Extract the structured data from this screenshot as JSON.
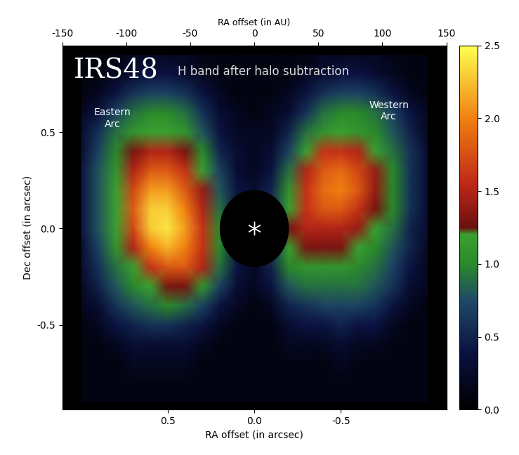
{
  "chart_data": {
    "type": "heatmap",
    "title": "H band after halo subtraction",
    "annotations": [
      "IRS48",
      "Eastern\nArc",
      "Western\nArc"
    ],
    "xlabel": "RA offset (in arcsec)",
    "ylabel": "Dec offset (in arcsec)",
    "x2label": "RA offset (in AU)",
    "x": [
      1.0,
      0.9,
      0.8,
      0.7,
      0.6,
      0.5,
      0.4,
      0.3,
      0.2,
      0.1,
      0.0,
      -0.1,
      -0.2,
      -0.3,
      -0.4,
      -0.5,
      -0.6,
      -0.7,
      -0.8,
      -0.9,
      -1.0
    ],
    "y": [
      0.9,
      0.8,
      0.7,
      0.6,
      0.5,
      0.4,
      0.3,
      0.2,
      0.1,
      0.0,
      -0.1,
      -0.2,
      -0.3,
      -0.4,
      -0.5,
      -0.6,
      -0.7,
      -0.8,
      -0.9
    ],
    "cells": [
      [
        0.1,
        0.1,
        0.1,
        0.2,
        0.2,
        0.2,
        0.2,
        0.1,
        0.1,
        0.1,
        0.1,
        0.1,
        0.1,
        0.1,
        0.2,
        0.2,
        0.2,
        0.2,
        0.1,
        0.1,
        0.1
      ],
      [
        0.1,
        0.1,
        0.2,
        0.3,
        0.4,
        0.4,
        0.3,
        0.2,
        0.1,
        0.1,
        0.1,
        0.1,
        0.1,
        0.2,
        0.3,
        0.4,
        0.4,
        0.3,
        0.2,
        0.1,
        0.1
      ],
      [
        0.1,
        0.2,
        0.4,
        0.6,
        0.7,
        0.7,
        0.6,
        0.4,
        0.2,
        0.1,
        0.1,
        0.1,
        0.2,
        0.4,
        0.6,
        0.7,
        0.7,
        0.6,
        0.4,
        0.2,
        0.1
      ],
      [
        0.2,
        0.4,
        0.7,
        0.9,
        1.0,
        1.0,
        0.9,
        0.6,
        0.3,
        0.2,
        0.1,
        0.2,
        0.3,
        0.6,
        0.9,
        1.0,
        1.0,
        0.9,
        0.7,
        0.4,
        0.2
      ],
      [
        0.3,
        0.6,
        0.9,
        1.1,
        1.2,
        1.2,
        1.1,
        0.8,
        0.4,
        0.2,
        0.2,
        0.2,
        0.5,
        0.9,
        1.1,
        1.2,
        1.1,
        1.0,
        0.8,
        0.5,
        0.2
      ],
      [
        0.3,
        0.7,
        1.0,
        1.3,
        1.5,
        1.5,
        1.3,
        1.0,
        0.5,
        0.3,
        0.2,
        0.3,
        0.7,
        1.2,
        1.6,
        1.6,
        1.5,
        1.2,
        0.9,
        0.6,
        0.3
      ],
      [
        0.4,
        0.8,
        1.1,
        1.5,
        1.8,
        1.8,
        1.6,
        1.2,
        0.7,
        0.3,
        0.2,
        0.4,
        0.9,
        1.5,
        1.8,
        1.9,
        1.7,
        1.4,
        1.0,
        0.6,
        0.3
      ],
      [
        0.4,
        0.8,
        1.2,
        1.7,
        2.1,
        2.1,
        1.8,
        1.4,
        0.8,
        0.4,
        0.3,
        0.5,
        1.1,
        1.6,
        1.9,
        2.0,
        1.8,
        1.4,
        1.0,
        0.6,
        0.3
      ],
      [
        0.4,
        0.8,
        1.2,
        1.8,
        2.3,
        2.3,
        2.0,
        1.5,
        0.9,
        0.4,
        0.3,
        0.6,
        1.2,
        1.6,
        1.8,
        1.8,
        1.6,
        1.3,
        1.0,
        0.6,
        0.3
      ],
      [
        0.4,
        0.8,
        1.2,
        1.7,
        2.3,
        2.4,
        2.1,
        1.6,
        1.0,
        0.4,
        0.3,
        0.6,
        1.3,
        1.5,
        1.5,
        1.5,
        1.4,
        1.2,
        0.9,
        0.5,
        0.3
      ],
      [
        0.3,
        0.7,
        1.1,
        1.5,
        2.0,
        2.2,
        2.0,
        1.6,
        1.0,
        0.4,
        0.3,
        0.6,
        1.2,
        1.3,
        1.3,
        1.3,
        1.2,
        1.0,
        0.8,
        0.5,
        0.2
      ],
      [
        0.3,
        0.6,
        0.9,
        1.2,
        1.6,
        1.8,
        1.8,
        1.5,
        0.9,
        0.4,
        0.2,
        0.5,
        1.0,
        1.1,
        1.1,
        1.1,
        1.0,
        0.9,
        0.7,
        0.4,
        0.2
      ],
      [
        0.2,
        0.5,
        0.8,
        1.0,
        1.2,
        1.3,
        1.3,
        1.1,
        0.7,
        0.3,
        0.2,
        0.4,
        0.8,
        0.9,
        0.9,
        0.9,
        0.9,
        0.8,
        0.6,
        0.3,
        0.2
      ],
      [
        0.2,
        0.3,
        0.6,
        0.8,
        0.9,
        1.0,
        0.9,
        0.7,
        0.4,
        0.2,
        0.1,
        0.2,
        0.5,
        0.6,
        0.7,
        0.7,
        0.7,
        0.6,
        0.4,
        0.2,
        0.1
      ],
      [
        0.1,
        0.2,
        0.4,
        0.5,
        0.6,
        0.6,
        0.5,
        0.4,
        0.2,
        0.1,
        0.1,
        0.1,
        0.3,
        0.4,
        0.4,
        0.5,
        0.4,
        0.4,
        0.2,
        0.1,
        0.1
      ],
      [
        0.1,
        0.1,
        0.2,
        0.3,
        0.3,
        0.3,
        0.3,
        0.2,
        0.1,
        0.1,
        0.1,
        0.1,
        0.2,
        0.2,
        0.2,
        0.3,
        0.2,
        0.2,
        0.1,
        0.1,
        0.1
      ],
      [
        0.1,
        0.1,
        0.1,
        0.2,
        0.2,
        0.2,
        0.2,
        0.1,
        0.1,
        0.1,
        0.1,
        0.1,
        0.1,
        0.1,
        0.1,
        0.2,
        0.1,
        0.1,
        0.1,
        0.1,
        0.1
      ],
      [
        0.1,
        0.1,
        0.1,
        0.1,
        0.1,
        0.1,
        0.1,
        0.1,
        0.1,
        0.1,
        0.1,
        0.1,
        0.1,
        0.1,
        0.1,
        0.1,
        0.1,
        0.1,
        0.1,
        0.1,
        0.1
      ],
      [
        0.1,
        0.1,
        0.1,
        0.1,
        0.1,
        0.1,
        0.1,
        0.1,
        0.1,
        0.1,
        0.1,
        0.1,
        0.1,
        0.1,
        0.1,
        0.1,
        0.1,
        0.1,
        0.1,
        0.1,
        0.1
      ]
    ],
    "xlim": [
      1.11,
      -1.11
    ],
    "ylim": [
      -0.94,
      0.95
    ],
    "xticks": [
      0.5,
      {
        "value": 0.0,
        "label": "0.0"
      },
      -0.5
    ],
    "yticks": [
      0.5,
      {
        "value": 0.0,
        "label": "0.0"
      },
      -0.5
    ],
    "x2lim": [
      -150,
      150
    ],
    "x2ticks": [
      -150,
      -100,
      -50,
      0,
      50,
      100,
      150
    ],
    "colorbar": {
      "range": [
        0,
        2.5
      ],
      "ticks": [
        {
          "value": 0.0,
          "label": "0.0"
        },
        0.5,
        {
          "value": 1.0,
          "label": "1.0"
        },
        1.5,
        {
          "value": 2.0,
          "label": "2.0"
        },
        2.5
      ]
    },
    "mask": {
      "center": [
        0,
        0
      ],
      "radius": 0.2
    }
  }
}
